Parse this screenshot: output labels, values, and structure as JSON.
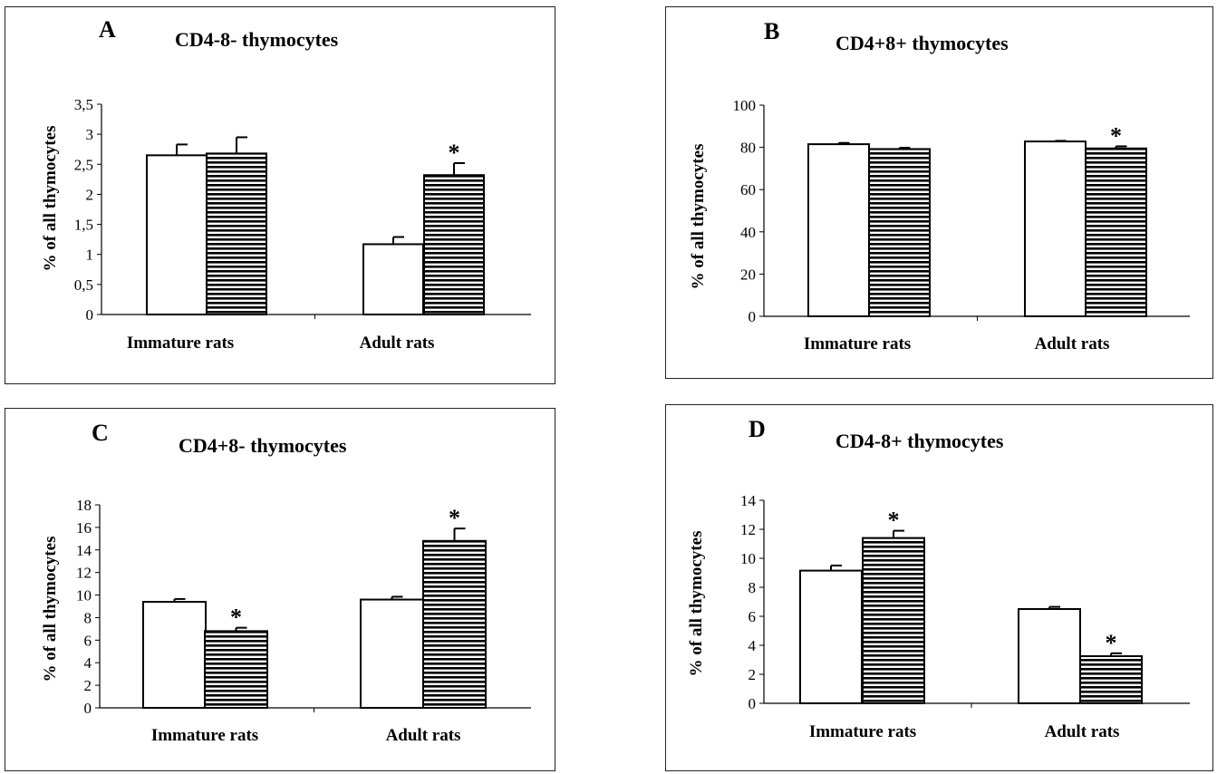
{
  "panels": [
    {
      "letter": "A",
      "title": "CD4-8- thymocytes",
      "ylabel": "% of all thymocytes",
      "categories": [
        "Immature rats",
        "Adult rats"
      ]
    },
    {
      "letter": "B",
      "title": "CD4+8+ thymocytes",
      "ylabel": "% of all thymocytes",
      "categories": [
        "Immature rats",
        "Adult rats"
      ]
    },
    {
      "letter": "C",
      "title": "CD4+8- thymocytes",
      "ylabel": "% of all thymocytes",
      "categories": [
        "Immature rats",
        "Adult rats"
      ]
    },
    {
      "letter": "D",
      "title": "CD4-8+ thymocytes",
      "ylabel": "% of all thymocytes",
      "categories": [
        "Immature rats",
        "Adult rats"
      ]
    }
  ],
  "chart_data": [
    {
      "type": "bar",
      "title": "CD4-8- thymocytes",
      "ylabel": "% of all thymocytes",
      "categories": [
        "Immature rats",
        "Adult rats"
      ],
      "yticks": [
        "0",
        "0,5",
        "1",
        "1,5",
        "2",
        "2,5",
        "3",
        "3,5"
      ],
      "ylim": [
        0,
        3.5
      ],
      "series": [
        {
          "fill": "open",
          "values": [
            2.65,
            1.17
          ],
          "errors": [
            0.18,
            0.12
          ],
          "significant": [
            false,
            false
          ]
        },
        {
          "fill": "horizontal-stripes",
          "values": [
            2.68,
            2.32
          ],
          "errors": [
            0.27,
            0.2
          ],
          "significant": [
            false,
            true
          ]
        }
      ],
      "marker": "*"
    },
    {
      "type": "bar",
      "title": "CD4+8+ thymocytes",
      "ylabel": "% of all thymocytes",
      "categories": [
        "Immature rats",
        "Adult rats"
      ],
      "yticks": [
        "0",
        "20",
        "40",
        "60",
        "80",
        "100"
      ],
      "ylim": [
        0,
        100
      ],
      "series": [
        {
          "fill": "open",
          "values": [
            81.5,
            82.8
          ],
          "errors": [
            0.6,
            0.3
          ],
          "significant": [
            false,
            false
          ]
        },
        {
          "fill": "horizontal-stripes",
          "values": [
            79.2,
            79.5
          ],
          "errors": [
            0.6,
            1.0
          ],
          "significant": [
            false,
            true
          ]
        }
      ],
      "marker": "*"
    },
    {
      "type": "bar",
      "title": "CD4+8- thymocytes",
      "ylabel": "% of all thymocytes",
      "categories": [
        "Immature rats",
        "Adult rats"
      ],
      "yticks": [
        "0",
        "2",
        "4",
        "6",
        "8",
        "10",
        "12",
        "14",
        "16",
        "18"
      ],
      "ylim": [
        0,
        18
      ],
      "series": [
        {
          "fill": "open",
          "values": [
            9.4,
            9.6
          ],
          "errors": [
            0.25,
            0.25
          ],
          "significant": [
            false,
            false
          ]
        },
        {
          "fill": "horizontal-stripes",
          "values": [
            6.8,
            14.8
          ],
          "errors": [
            0.3,
            1.1
          ],
          "significant": [
            true,
            true
          ]
        }
      ],
      "marker": "*"
    },
    {
      "type": "bar",
      "title": "CD4-8+ thymocytes",
      "ylabel": "% of all thymocytes",
      "categories": [
        "Immature rats",
        "Adult rats"
      ],
      "yticks": [
        "0",
        "2",
        "4",
        "6",
        "8",
        "10",
        "12",
        "14"
      ],
      "ylim": [
        0,
        14
      ],
      "series": [
        {
          "fill": "open",
          "values": [
            9.15,
            6.5
          ],
          "errors": [
            0.35,
            0.15
          ],
          "significant": [
            false,
            false
          ]
        },
        {
          "fill": "horizontal-stripes",
          "values": [
            11.4,
            3.25
          ],
          "errors": [
            0.5,
            0.2
          ],
          "significant": [
            true,
            true
          ]
        }
      ],
      "marker": "*"
    }
  ]
}
